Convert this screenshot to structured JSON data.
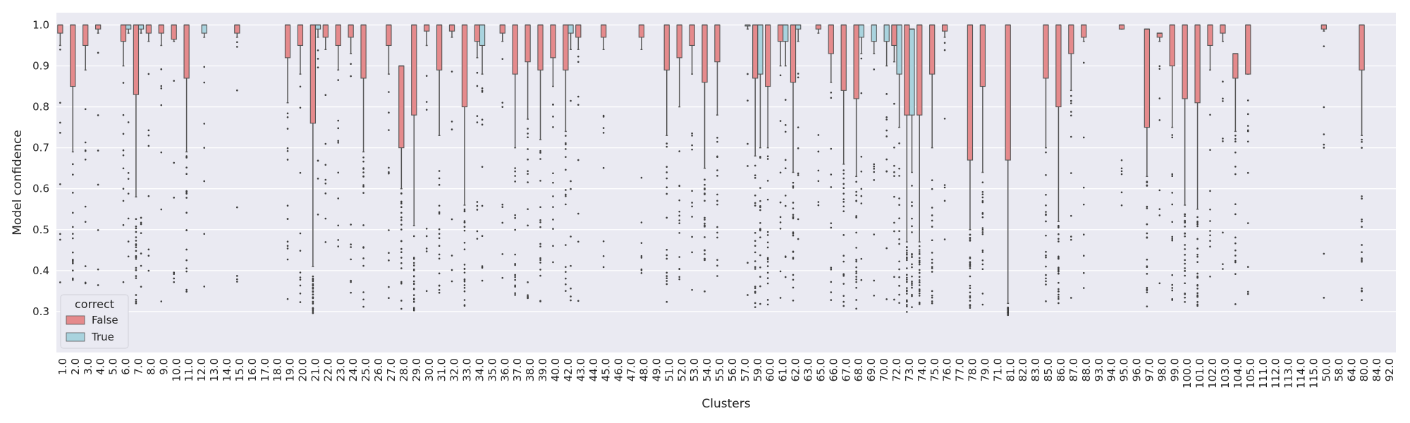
{
  "chart_data": {
    "type": "box",
    "xlabel": "Clusters",
    "ylabel": "Model confidence",
    "ylim": [
      0.2,
      1.03
    ],
    "yticks": [
      0.3,
      0.4,
      0.5,
      0.6,
      0.7,
      0.8,
      0.9,
      1.0
    ],
    "ytick_labels": [
      "0.3",
      "0.4",
      "0.5",
      "0.6",
      "0.7",
      "0.8",
      "0.9",
      "1.0"
    ],
    "grid": true,
    "background": "#EAEAF2",
    "legend": {
      "title": "correct",
      "placement": "bottom-left",
      "entries": [
        {
          "label": "False",
          "color": "#E58A8C"
        },
        {
          "label": "True",
          "color": "#A9D3DE"
        }
      ]
    },
    "categories": [
      "1.0",
      "2.0",
      "3.0",
      "4.0",
      "5.0",
      "6.0",
      "7.0",
      "8.0",
      "9.0",
      "10.0",
      "11.0",
      "12.0",
      "13.0",
      "14.0",
      "15.0",
      "16.0",
      "17.0",
      "18.0",
      "19.0",
      "20.0",
      "21.0",
      "22.0",
      "23.0",
      "24.0",
      "25.0",
      "26.0",
      "27.0",
      "28.0",
      "29.0",
      "30.0",
      "31.0",
      "32.0",
      "33.0",
      "34.0",
      "35.0",
      "36.0",
      "37.0",
      "38.0",
      "39.0",
      "40.0",
      "42.0",
      "43.0",
      "44.0",
      "45.0",
      "46.0",
      "47.0",
      "48.0",
      "49.0",
      "51.0",
      "52.0",
      "53.0",
      "54.0",
      "55.0",
      "56.0",
      "57.0",
      "59.0",
      "60.0",
      "61.0",
      "62.0",
      "63.0",
      "65.0",
      "66.0",
      "67.0",
      "68.0",
      "69.0",
      "70.0",
      "72.0",
      "73.0",
      "74.0",
      "75.0",
      "76.0",
      "77.0",
      "78.0",
      "79.0",
      "71.0",
      "81.0",
      "82.0",
      "83.0",
      "85.0",
      "86.0",
      "87.0",
      "88.0",
      "93.0",
      "94.0",
      "95.0",
      "96.0",
      "97.0",
      "98.0",
      "99.0",
      "100.0",
      "101.0",
      "102.0",
      "103.0",
      "104.0",
      "105.0",
      "111.0",
      "112.0",
      "113.0",
      "114.0",
      "115.0",
      "50.0",
      "58.0",
      "64.0",
      "80.0",
      "84.0",
      "92.0"
    ],
    "series": [
      {
        "name": "False",
        "color": "#E58A8C",
        "boxes": [
          [
            0.95,
            0.98,
            1.0
          ],
          [
            0.69,
            0.85,
            1.0
          ],
          [
            0.89,
            0.95,
            1.0
          ],
          [
            0.98,
            0.99,
            1.0
          ],
          null,
          [
            0.9,
            0.96,
            1.0
          ],
          [
            0.58,
            0.83,
            1.0
          ],
          [
            0.96,
            0.98,
            1.0
          ],
          [
            0.95,
            0.98,
            1.0
          ],
          [
            0.96,
            0.965,
            1.0
          ],
          [
            0.69,
            0.87,
            1.0
          ],
          null,
          null,
          null,
          [
            0.97,
            0.98,
            1.0
          ],
          null,
          null,
          null,
          [
            0.81,
            0.92,
            1.0
          ],
          [
            0.88,
            0.95,
            1.0
          ],
          [
            0.41,
            0.76,
            1.0
          ],
          [
            0.94,
            0.97,
            1.0
          ],
          [
            0.89,
            0.95,
            1.0
          ],
          [
            0.93,
            0.97,
            1.0
          ],
          [
            0.69,
            0.87,
            1.0
          ],
          null,
          [
            0.88,
            0.95,
            1.0
          ],
          [
            0.6,
            0.7,
            0.9
          ],
          [
            0.51,
            0.78,
            1.0
          ],
          [
            0.95,
            0.985,
            1.0
          ],
          [
            0.73,
            0.89,
            1.0
          ],
          [
            0.97,
            0.985,
            1.0
          ],
          [
            0.56,
            0.8,
            1.0
          ],
          [
            0.92,
            0.96,
            1.0
          ],
          null,
          [
            0.96,
            0.98,
            1.0
          ],
          [
            0.7,
            0.88,
            1.0
          ],
          [
            0.77,
            0.91,
            1.0
          ],
          [
            0.72,
            0.89,
            1.0
          ],
          [
            0.85,
            0.92,
            1.0
          ],
          [
            0.74,
            0.89,
            1.0
          ],
          [
            0.94,
            0.97,
            1.0
          ],
          null,
          [
            0.94,
            0.97,
            1.0
          ],
          null,
          null,
          [
            0.94,
            0.97,
            1.0
          ],
          null,
          [
            0.73,
            0.89,
            1.0
          ],
          [
            0.8,
            0.92,
            1.0
          ],
          [
            0.88,
            0.95,
            1.0
          ],
          [
            0.65,
            0.86,
            1.0
          ],
          [
            0.78,
            0.91,
            1.0
          ],
          null,
          null,
          [
            0.68,
            0.87,
            1.0
          ],
          [
            0.7,
            0.85,
            1.0
          ],
          [
            0.9,
            0.96,
            1.0
          ],
          [
            0.64,
            0.86,
            1.0
          ],
          null,
          [
            0.98,
            0.99,
            1.0
          ],
          [
            0.86,
            0.93,
            1.0
          ],
          [
            0.66,
            0.84,
            1.0
          ],
          [
            0.63,
            0.82,
            1.0
          ],
          null,
          null,
          [
            0.91,
            0.95,
            1.0
          ],
          [
            0.47,
            0.78,
            1.0
          ],
          [
            0.47,
            0.78,
            1.0
          ],
          [
            0.7,
            0.88,
            1.0
          ],
          [
            0.97,
            0.985,
            1.0
          ],
          null,
          [
            0.5,
            0.67,
            1.0
          ],
          [
            0.64,
            0.85,
            1.0
          ],
          null,
          [
            0.32,
            0.67,
            1.0
          ],
          null,
          null,
          [
            0.7,
            0.87,
            1.0
          ],
          [
            0.52,
            0.8,
            1.0
          ],
          [
            0.84,
            0.93,
            1.0
          ],
          [
            0.96,
            0.97,
            1.0
          ],
          null,
          null,
          [
            0.99,
            0.99,
            1.0
          ],
          null,
          [
            0.63,
            0.75,
            0.99
          ],
          [
            0.96,
            0.97,
            0.98
          ],
          [
            0.75,
            0.9,
            1.0
          ],
          [
            0.56,
            0.82,
            1.0
          ],
          [
            0.55,
            0.81,
            1.0
          ],
          [
            0.89,
            0.95,
            1.0
          ],
          [
            0.96,
            0.98,
            1.0
          ],
          [
            0.74,
            0.87,
            0.93
          ],
          [
            0.88,
            0.88,
            1.0
          ],
          null,
          null,
          null,
          null,
          null,
          [
            0.985,
            0.99,
            1.0
          ],
          null,
          null,
          [
            0.73,
            0.89,
            1.0
          ],
          null,
          null
        ]
      },
      {
        "name": "True",
        "color": "#A9D3DE",
        "boxes": [
          null,
          null,
          null,
          null,
          null,
          [
            0.98,
            0.99,
            1.0
          ],
          [
            0.98,
            0.99,
            1.0
          ],
          null,
          null,
          null,
          null,
          [
            0.97,
            0.98,
            1.0
          ],
          null,
          null,
          null,
          null,
          null,
          null,
          null,
          null,
          [
            0.97,
            0.99,
            1.0
          ],
          null,
          null,
          null,
          null,
          null,
          null,
          null,
          null,
          null,
          null,
          null,
          null,
          [
            0.88,
            0.95,
            1.0
          ],
          null,
          null,
          null,
          null,
          null,
          null,
          [
            0.94,
            0.98,
            1.0
          ],
          null,
          null,
          null,
          null,
          null,
          null,
          null,
          null,
          null,
          null,
          null,
          null,
          null,
          [
            0.99,
            1.0,
            1.0
          ],
          [
            0.7,
            0.88,
            1.0
          ],
          null,
          [
            0.9,
            0.96,
            1.0
          ],
          [
            0.96,
            0.99,
            1.0
          ],
          null,
          null,
          null,
          null,
          [
            0.93,
            0.97,
            1.0
          ],
          [
            0.93,
            0.96,
            1.0
          ],
          [
            0.9,
            0.96,
            1.0
          ],
          [
            0.75,
            0.88,
            1.0
          ],
          [
            0.64,
            0.78,
            0.99
          ],
          null,
          null,
          null,
          null,
          null,
          null,
          null,
          null,
          null,
          null,
          null,
          null,
          null,
          null,
          null,
          null,
          null,
          null,
          null,
          null,
          null,
          null,
          null,
          null,
          null,
          null,
          null,
          null,
          null,
          null,
          null,
          null,
          null,
          null,
          null,
          null,
          null,
          null
        ]
      }
    ]
  }
}
